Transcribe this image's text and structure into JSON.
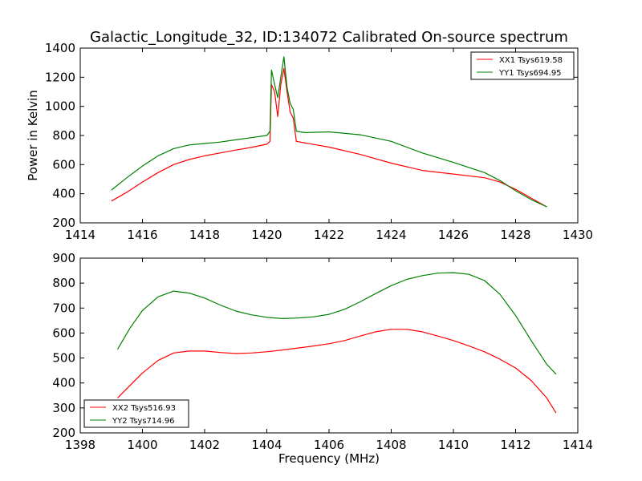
{
  "chart_data": [
    {
      "type": "line",
      "title": "Galactic_Longitude_32, ID:134072 Calibrated On-source spectrum",
      "xlabel": "",
      "ylabel": "Power in Kelvin",
      "xlim": [
        1414,
        1430
      ],
      "ylim": [
        200,
        1400
      ],
      "xticks": [
        "1414",
        "1416",
        "1418",
        "1420",
        "1422",
        "1424",
        "1426",
        "1428",
        "1430"
      ],
      "yticks": [
        "200",
        "400",
        "600",
        "800",
        "1000",
        "1200",
        "1400"
      ],
      "legend_position": "top-right",
      "series": [
        {
          "name": "XX1 Tsys619.58",
          "color": "#ff0000",
          "points": [
            [
              1415.0,
              350
            ],
            [
              1415.5,
              410
            ],
            [
              1416.0,
              480
            ],
            [
              1416.5,
              545
            ],
            [
              1417.0,
              600
            ],
            [
              1417.5,
              635
            ],
            [
              1418.0,
              660
            ],
            [
              1418.5,
              680
            ],
            [
              1419.0,
              700
            ],
            [
              1419.5,
              718
            ],
            [
              1420.0,
              740
            ],
            [
              1420.1,
              760
            ],
            [
              1420.15,
              1150
            ],
            [
              1420.25,
              1100
            ],
            [
              1420.35,
              930
            ],
            [
              1420.45,
              1150
            ],
            [
              1420.55,
              1260
            ],
            [
              1420.65,
              1100
            ],
            [
              1420.75,
              960
            ],
            [
              1420.85,
              920
            ],
            [
              1420.95,
              760
            ],
            [
              1421.2,
              750
            ],
            [
              1422.0,
              720
            ],
            [
              1423.0,
              670
            ],
            [
              1424.0,
              610
            ],
            [
              1425.0,
              560
            ],
            [
              1426.0,
              535
            ],
            [
              1427.0,
              510
            ],
            [
              1427.5,
              480
            ],
            [
              1428.0,
              430
            ],
            [
              1428.5,
              370
            ],
            [
              1429.0,
              310
            ]
          ]
        },
        {
          "name": "YY1 Tsys694.95",
          "color": "#008000",
          "points": [
            [
              1415.0,
              425
            ],
            [
              1415.5,
              510
            ],
            [
              1416.0,
              590
            ],
            [
              1416.5,
              660
            ],
            [
              1417.0,
              710
            ],
            [
              1417.5,
              735
            ],
            [
              1418.0,
              745
            ],
            [
              1418.5,
              755
            ],
            [
              1419.0,
              770
            ],
            [
              1419.5,
              785
            ],
            [
              1420.0,
              800
            ],
            [
              1420.1,
              830
            ],
            [
              1420.15,
              1250
            ],
            [
              1420.25,
              1150
            ],
            [
              1420.35,
              1060
            ],
            [
              1420.45,
              1200
            ],
            [
              1420.55,
              1340
            ],
            [
              1420.65,
              1130
            ],
            [
              1420.75,
              1020
            ],
            [
              1420.85,
              980
            ],
            [
              1420.95,
              830
            ],
            [
              1421.2,
              820
            ],
            [
              1422.0,
              825
            ],
            [
              1423.0,
              805
            ],
            [
              1424.0,
              760
            ],
            [
              1425.0,
              680
            ],
            [
              1426.0,
              615
            ],
            [
              1427.0,
              545
            ],
            [
              1427.5,
              490
            ],
            [
              1428.0,
              420
            ],
            [
              1428.5,
              360
            ],
            [
              1429.0,
              310
            ]
          ]
        }
      ]
    },
    {
      "type": "line",
      "title": "",
      "xlabel": "Frequency (MHz)",
      "ylabel": "",
      "xlim": [
        1398,
        1414
      ],
      "ylim": [
        200,
        900
      ],
      "xticks": [
        "1398",
        "1400",
        "1402",
        "1404",
        "1406",
        "1408",
        "1410",
        "1412",
        "1414"
      ],
      "yticks": [
        "200",
        "300",
        "400",
        "500",
        "600",
        "700",
        "800",
        "900"
      ],
      "legend_position": "bottom-left",
      "series": [
        {
          "name": "XX2 Tsys516.93",
          "color": "#ff0000",
          "points": [
            [
              1399.2,
              340
            ],
            [
              1399.6,
              390
            ],
            [
              1400.0,
              440
            ],
            [
              1400.5,
              490
            ],
            [
              1401.0,
              520
            ],
            [
              1401.5,
              528
            ],
            [
              1402.0,
              528
            ],
            [
              1402.5,
              522
            ],
            [
              1403.0,
              518
            ],
            [
              1403.5,
              520
            ],
            [
              1404.0,
              525
            ],
            [
              1404.5,
              532
            ],
            [
              1405.0,
              540
            ],
            [
              1405.5,
              548
            ],
            [
              1406.0,
              557
            ],
            [
              1406.5,
              570
            ],
            [
              1407.0,
              588
            ],
            [
              1407.5,
              605
            ],
            [
              1408.0,
              615
            ],
            [
              1408.5,
              615
            ],
            [
              1409.0,
              605
            ],
            [
              1409.5,
              588
            ],
            [
              1410.0,
              570
            ],
            [
              1410.5,
              548
            ],
            [
              1411.0,
              525
            ],
            [
              1411.5,
              495
            ],
            [
              1412.0,
              460
            ],
            [
              1412.5,
              410
            ],
            [
              1413.0,
              340
            ],
            [
              1413.3,
              280
            ]
          ]
        },
        {
          "name": "YY2 Tsys714.96",
          "color": "#008000",
          "points": [
            [
              1399.2,
              535
            ],
            [
              1399.6,
              620
            ],
            [
              1400.0,
              690
            ],
            [
              1400.5,
              745
            ],
            [
              1401.0,
              768
            ],
            [
              1401.5,
              760
            ],
            [
              1402.0,
              740
            ],
            [
              1402.5,
              712
            ],
            [
              1403.0,
              688
            ],
            [
              1403.5,
              673
            ],
            [
              1404.0,
              663
            ],
            [
              1404.5,
              658
            ],
            [
              1405.0,
              660
            ],
            [
              1405.5,
              665
            ],
            [
              1406.0,
              675
            ],
            [
              1406.5,
              695
            ],
            [
              1407.0,
              725
            ],
            [
              1407.5,
              758
            ],
            [
              1408.0,
              790
            ],
            [
              1408.5,
              815
            ],
            [
              1409.0,
              830
            ],
            [
              1409.5,
              840
            ],
            [
              1410.0,
              842
            ],
            [
              1410.5,
              835
            ],
            [
              1411.0,
              810
            ],
            [
              1411.5,
              755
            ],
            [
              1412.0,
              670
            ],
            [
              1412.5,
              570
            ],
            [
              1413.0,
              475
            ],
            [
              1413.3,
              435
            ]
          ]
        }
      ]
    }
  ]
}
